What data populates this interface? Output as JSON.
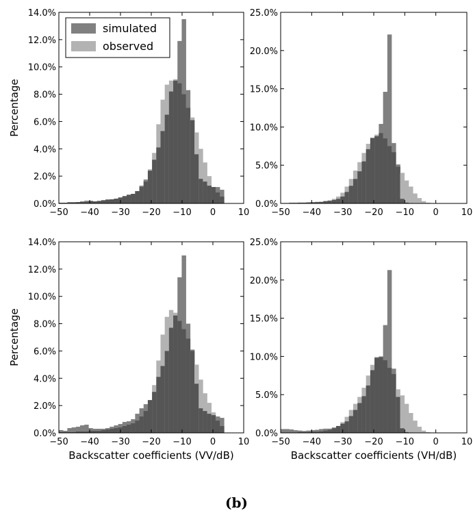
{
  "caption": "(b)",
  "legend": {
    "entries": [
      {
        "label": "simulated",
        "color": "#808080"
      },
      {
        "label": "observed",
        "color": "#b3b3b3"
      }
    ],
    "overlap_color": "#555555",
    "placement": "top-left"
  },
  "chart_data": [
    {
      "type": "bar",
      "panel": "top-left",
      "xlabel": "",
      "ylabel": "Percentage",
      "xlim": [
        -50,
        10
      ],
      "ylim": [
        0,
        14
      ],
      "xticks": [
        -50,
        -40,
        -30,
        -20,
        -10,
        0,
        10
      ],
      "yticks": [
        0,
        2,
        4,
        6,
        8,
        10,
        12,
        14
      ],
      "yticklabels": [
        "0.0%",
        "2.0%",
        "4.0%",
        "6.0%",
        "8.0%",
        "10.0%",
        "12.0%",
        "14.0%"
      ],
      "bin_start": -50,
      "bin_width": 1.375,
      "series": [
        {
          "name": "simulated",
          "values": [
            0.05,
            0.05,
            0.1,
            0.1,
            0.1,
            0.15,
            0.2,
            0.2,
            0.15,
            0.2,
            0.25,
            0.3,
            0.3,
            0.35,
            0.45,
            0.55,
            0.65,
            0.7,
            0.9,
            1.3,
            1.75,
            2.4,
            3.2,
            4.1,
            5.3,
            6.5,
            8.2,
            9.0,
            11.9,
            13.5,
            8.3,
            6.1,
            3.6,
            1.8,
            1.6,
            1.3,
            1.2,
            1.2,
            1.0,
            0,
            0
          ]
        },
        {
          "name": "observed",
          "values": [
            0.05,
            0.05,
            0.05,
            0.05,
            0.1,
            0.1,
            0.1,
            0.15,
            0.15,
            0.15,
            0.2,
            0.25,
            0.3,
            0.35,
            0.4,
            0.5,
            0.6,
            0.7,
            0.9,
            1.2,
            1.6,
            2.5,
            3.7,
            5.8,
            7.6,
            8.7,
            9.0,
            9.1,
            8.8,
            8.0,
            7.0,
            6.3,
            5.2,
            4.0,
            3.0,
            2.0,
            1.2,
            0.8,
            0.5,
            0,
            0
          ]
        }
      ]
    },
    {
      "type": "bar",
      "panel": "top-right",
      "xlabel": "",
      "ylabel": "",
      "xlim": [
        -50,
        10
      ],
      "ylim": [
        0,
        25
      ],
      "xticks": [
        -50,
        -40,
        -30,
        -20,
        -10,
        0,
        10
      ],
      "yticks": [
        0,
        5,
        10,
        15,
        20,
        25
      ],
      "yticklabels": [
        "0.0%",
        "5.0%",
        "10.0%",
        "15.0%",
        "20.0%",
        "25.0%"
      ],
      "bin_start": -50,
      "bin_width": 1.375,
      "series": [
        {
          "name": "simulated",
          "values": [
            0.05,
            0.05,
            0.1,
            0.1,
            0.1,
            0.1,
            0.15,
            0.15,
            0.2,
            0.2,
            0.3,
            0.35,
            0.45,
            0.6,
            0.9,
            1.5,
            2.3,
            3.2,
            4.2,
            5.5,
            7.1,
            8.6,
            8.8,
            10.4,
            14.6,
            22.1,
            7.9,
            5.1,
            0.6,
            0.1,
            0.05,
            0,
            0,
            0,
            0,
            0,
            0,
            0,
            0,
            0,
            0
          ]
        },
        {
          "name": "observed",
          "values": [
            0.05,
            0.05,
            0.05,
            0.05,
            0.1,
            0.1,
            0.1,
            0.15,
            0.15,
            0.2,
            0.3,
            0.4,
            0.6,
            0.9,
            1.4,
            2.2,
            3.2,
            4.3,
            5.4,
            6.6,
            7.8,
            8.5,
            9.0,
            9.2,
            8.5,
            7.5,
            6.7,
            4.8,
            4.0,
            3.0,
            2.2,
            1.3,
            0.7,
            0.3,
            0.1,
            0.05,
            0,
            0,
            0,
            0,
            0
          ]
        }
      ]
    },
    {
      "type": "bar",
      "panel": "bottom-left",
      "xlabel": "Backscatter coefficients (VV/dB)",
      "ylabel": "Percentage",
      "xlim": [
        -50,
        10
      ],
      "ylim": [
        0,
        14
      ],
      "xticks": [
        -50,
        -40,
        -30,
        -20,
        -10,
        0,
        10
      ],
      "yticks": [
        0,
        2,
        4,
        6,
        8,
        10,
        12,
        14
      ],
      "yticklabels": [
        "0.0%",
        "2.0%",
        "4.0%",
        "6.0%",
        "8.0%",
        "10.0%",
        "12.0%",
        "14.0%"
      ],
      "bin_start": -50,
      "bin_width": 1.375,
      "series": [
        {
          "name": "simulated",
          "values": [
            0.2,
            0.15,
            0.35,
            0.4,
            0.45,
            0.55,
            0.6,
            0.35,
            0.3,
            0.3,
            0.3,
            0.35,
            0.45,
            0.55,
            0.65,
            0.8,
            0.85,
            1.0,
            1.4,
            1.8,
            2.1,
            2.4,
            3.0,
            4.1,
            4.9,
            6.0,
            7.7,
            8.6,
            11.4,
            13.0,
            8.0,
            6.1,
            3.6,
            1.8,
            1.6,
            1.4,
            1.3,
            1.2,
            1.1,
            0,
            0
          ]
        },
        {
          "name": "observed",
          "values": [
            0.05,
            0.05,
            0.05,
            0.05,
            0.1,
            0.1,
            0.1,
            0.15,
            0.15,
            0.15,
            0.2,
            0.25,
            0.3,
            0.35,
            0.4,
            0.5,
            0.6,
            0.7,
            0.9,
            1.2,
            1.6,
            2.4,
            3.5,
            5.3,
            7.2,
            8.5,
            9.0,
            8.8,
            8.2,
            7.6,
            6.9,
            6.0,
            5.0,
            3.9,
            2.9,
            2.2,
            1.5,
            0.9,
            0.5,
            0,
            0
          ]
        }
      ]
    },
    {
      "type": "bar",
      "panel": "bottom-right",
      "xlabel": "Backscatter coefficients (VH/dB)",
      "ylabel": "",
      "xlim": [
        -50,
        10
      ],
      "ylim": [
        0,
        25
      ],
      "xticks": [
        -50,
        -40,
        -30,
        -20,
        -10,
        0,
        10
      ],
      "yticks": [
        0,
        5,
        10,
        15,
        20,
        25
      ],
      "yticklabels": [
        "0.0%",
        "5.0%",
        "10.0%",
        "15.0%",
        "20.0%",
        "25.0%"
      ],
      "bin_start": -50,
      "bin_width": 1.375,
      "series": [
        {
          "name": "simulated",
          "values": [
            0.5,
            0.5,
            0.45,
            0.35,
            0.3,
            0.25,
            0.3,
            0.35,
            0.4,
            0.5,
            0.55,
            0.55,
            0.7,
            0.9,
            1.2,
            1.5,
            2.2,
            3.0,
            3.9,
            4.8,
            6.2,
            8.2,
            9.9,
            10.0,
            14.1,
            21.3,
            8.4,
            4.7,
            0.6,
            0.1,
            0.05,
            0,
            0,
            0,
            0,
            0,
            0,
            0,
            0,
            0,
            0
          ]
        },
        {
          "name": "observed",
          "values": [
            0.05,
            0.05,
            0.05,
            0.05,
            0.1,
            0.1,
            0.1,
            0.15,
            0.15,
            0.2,
            0.3,
            0.4,
            0.6,
            0.9,
            1.4,
            2.1,
            3.0,
            3.8,
            4.7,
            5.9,
            7.5,
            8.9,
            9.8,
            9.9,
            9.5,
            8.5,
            7.7,
            5.7,
            4.9,
            3.8,
            2.6,
            1.6,
            0.8,
            0.3,
            0.1,
            0.05,
            0,
            0,
            0,
            0,
            0
          ]
        }
      ]
    }
  ]
}
